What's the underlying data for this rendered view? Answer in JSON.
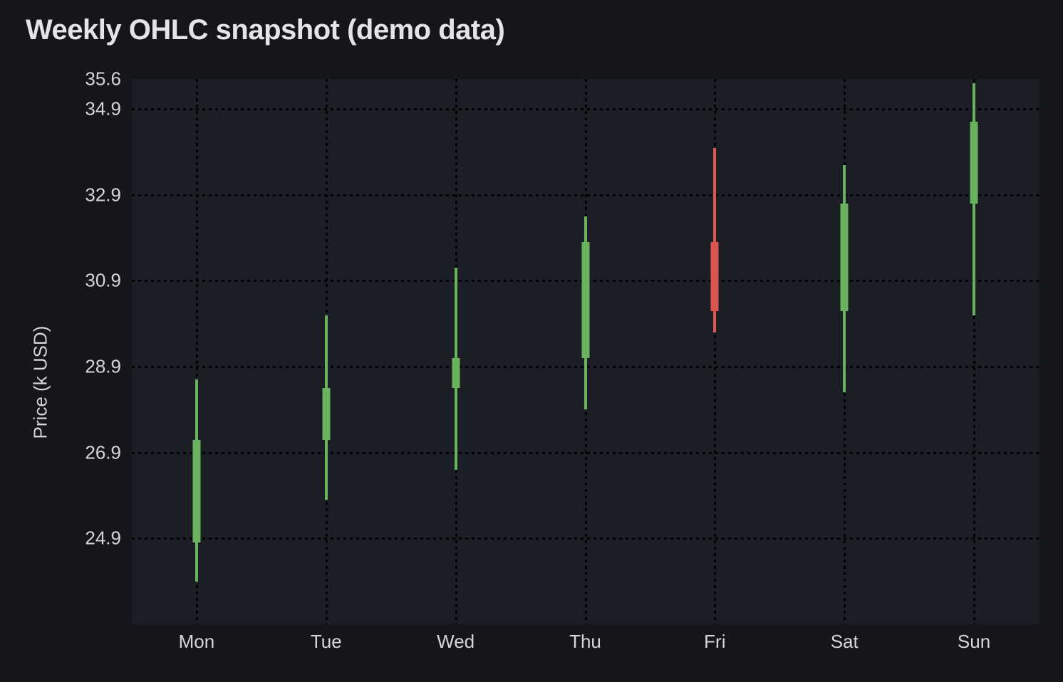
{
  "page": {
    "title": "Weekly OHLC snapshot (demo data)"
  },
  "chart_data": {
    "type": "candlestick",
    "title": "Weekly OHLC snapshot (demo data)",
    "xlabel": "",
    "ylabel": "Price (k USD)",
    "categories": [
      "Mon",
      "Tue",
      "Wed",
      "Thu",
      "Fri",
      "Sat",
      "Sun"
    ],
    "ohlc": [
      {
        "day": "Mon",
        "open": 24.8,
        "high": 28.6,
        "low": 23.9,
        "close": 27.2,
        "direction": "up"
      },
      {
        "day": "Tue",
        "open": 27.2,
        "high": 30.1,
        "low": 25.8,
        "close": 28.4,
        "direction": "up"
      },
      {
        "day": "Wed",
        "open": 28.4,
        "high": 31.2,
        "low": 26.5,
        "close": 29.1,
        "direction": "up"
      },
      {
        "day": "Thu",
        "open": 29.1,
        "high": 32.4,
        "low": 27.9,
        "close": 31.8,
        "direction": "up"
      },
      {
        "day": "Fri",
        "open": 31.8,
        "high": 34.0,
        "low": 29.7,
        "close": 30.2,
        "direction": "down"
      },
      {
        "day": "Sat",
        "open": 30.2,
        "high": 33.6,
        "low": 28.3,
        "close": 32.7,
        "direction": "up"
      },
      {
        "day": "Sun",
        "open": 32.7,
        "high": 35.5,
        "low": 30.1,
        "close": 34.6,
        "direction": "up"
      }
    ],
    "yticks": [
      {
        "label": "35.6",
        "value": 35.6,
        "grid": false
      },
      {
        "label": "34.9",
        "value": 34.9,
        "grid": true
      },
      {
        "label": "32.9",
        "value": 32.9,
        "grid": true
      },
      {
        "label": "30.9",
        "value": 30.9,
        "grid": true
      },
      {
        "label": "28.9",
        "value": 28.9,
        "grid": true
      },
      {
        "label": "26.9",
        "value": 26.9,
        "grid": true
      },
      {
        "label": "24.9",
        "value": 24.9,
        "grid": true
      }
    ],
    "ylim": [
      22.9,
      35.6
    ],
    "grid": "dotted-black-horizontal-and-vertical",
    "legend": "none",
    "colors": {
      "up": "#69b35f",
      "down": "#dc564f",
      "page_background": "#14161b",
      "plot_background": "#1b1e24",
      "grid": "#000000",
      "title_text": "#e3e4e7",
      "tick_text": "#d5d6d9"
    }
  }
}
